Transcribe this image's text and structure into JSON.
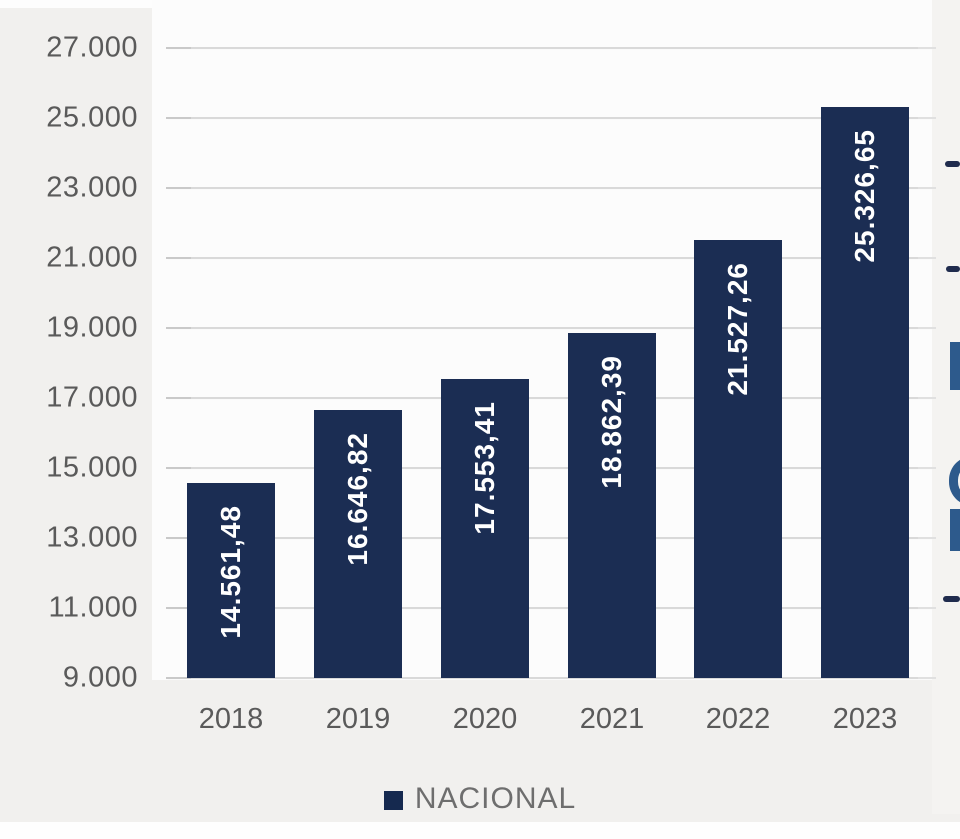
{
  "chart_data": {
    "type": "bar",
    "title": "",
    "xlabel": "",
    "ylabel": "",
    "categories": [
      "2018",
      "2019",
      "2020",
      "2021",
      "2022",
      "2023"
    ],
    "values": [
      14561.48,
      16646.82,
      17553.41,
      18862.39,
      21527.26,
      25326.65
    ],
    "value_labels": [
      "14.561,48",
      "16.646,82",
      "17.553,41",
      "18.862,39",
      "21.527,26",
      "25.326,65"
    ],
    "series_name": "NACIONAL",
    "y_ticks": [
      {
        "value": 27000,
        "label": "27.000"
      },
      {
        "value": 25000,
        "label": "25.000"
      },
      {
        "value": 23000,
        "label": "23.000"
      },
      {
        "value": 21000,
        "label": "21.000"
      },
      {
        "value": 19000,
        "label": "19.000"
      },
      {
        "value": 17000,
        "label": "17.000"
      },
      {
        "value": 15000,
        "label": "15.000"
      },
      {
        "value": 13000,
        "label": "13.000"
      },
      {
        "value": 11000,
        "label": "11.000"
      },
      {
        "value": 9000,
        "label": "9.000"
      }
    ],
    "ylim": [
      9000,
      27000
    ],
    "grid": true,
    "legend_position": "bottom",
    "colors": {
      "bar": "#1b2d53",
      "legend_swatch": "#15294f",
      "axis_text": "#5a5a5a",
      "bar_label_text": "#ffffff",
      "gridline": "#d9d9d9",
      "panel_background": "#f1f0ee",
      "plot_background": "#fcfcfc",
      "edge_fragment_navy": "#1f2b4d",
      "edge_fragment_blue": "#2d5a8c"
    }
  },
  "legend": {
    "nacional_label": "NACIONAL"
  },
  "artifacts": {
    "right_edge_cutoff_text": true
  }
}
